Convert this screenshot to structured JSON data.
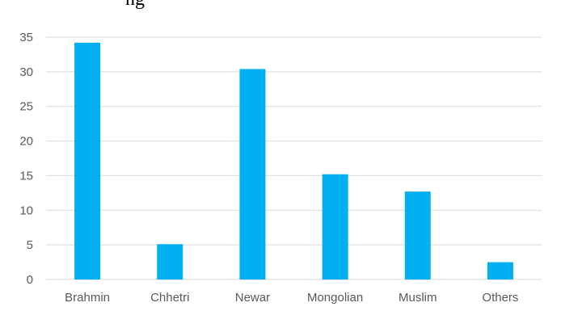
{
  "chart_data": {
    "type": "bar",
    "categories": [
      "Brahmin",
      "Chhetri",
      "Newar",
      "Mongolian",
      "Muslim",
      "Others"
    ],
    "values": [
      34.2,
      5.1,
      30.4,
      15.2,
      12.7,
      2.5
    ],
    "ylim": [
      0,
      35
    ],
    "yticks": [
      0,
      5,
      10,
      15,
      20,
      25,
      30,
      35
    ],
    "grid": true,
    "legend": "none",
    "bar_color": "#00B0F0",
    "grid_color": "#D9D9D9"
  },
  "clipped_top_text": "ng"
}
